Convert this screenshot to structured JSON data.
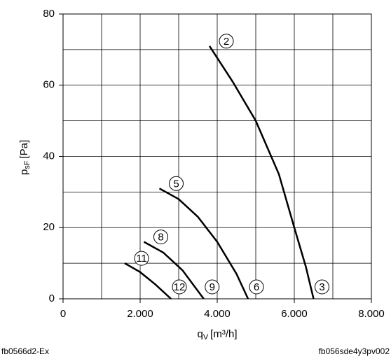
{
  "chart_data": {
    "type": "line",
    "y_label": {
      "main": "p",
      "sub": "sF",
      "unit": "[Pa]"
    },
    "x_label": {
      "main": "q",
      "sub": "V",
      "unit": "[m³/h]"
    },
    "xlim": [
      0,
      8000
    ],
    "ylim": [
      0,
      80
    ],
    "xticks": [
      0,
      {
        "value": 2000,
        "label": "2.000"
      },
      {
        "value": 4000,
        "label": "4.000"
      },
      {
        "value": 6000,
        "label": "6.000"
      },
      {
        "value": 8000,
        "label": "8.000"
      }
    ],
    "yticks": [
      0,
      20,
      40,
      60,
      80
    ],
    "xgrid": [
      1000,
      2000,
      3000,
      4000,
      5000,
      6000,
      7000
    ],
    "ygrid": [
      10,
      20,
      30,
      40,
      50,
      60,
      70
    ],
    "color": "#000000",
    "series": [
      {
        "name": "2",
        "end_label": "3",
        "x": [
          3800,
          4400,
          5000,
          5600,
          6000,
          6300,
          6500
        ],
        "values": [
          71,
          61,
          50,
          35,
          20,
          9,
          0
        ]
      },
      {
        "name": "5",
        "end_label": "6",
        "x": [
          2500,
          3000,
          3500,
          4000,
          4500,
          4800
        ],
        "values": [
          31,
          28,
          23,
          16,
          7,
          0
        ]
      },
      {
        "name": "8",
        "end_label": "9",
        "x": [
          2100,
          2600,
          3100,
          3650
        ],
        "values": [
          16,
          13,
          8,
          0
        ]
      },
      {
        "name": "11",
        "end_label": "12",
        "x": [
          1600,
          2000,
          2400,
          2800
        ],
        "values": [
          10,
          7.5,
          4,
          0
        ]
      }
    ],
    "footer_left": "fb0566d2-Ex",
    "footer_right": "fb056sde4y3pv002"
  }
}
